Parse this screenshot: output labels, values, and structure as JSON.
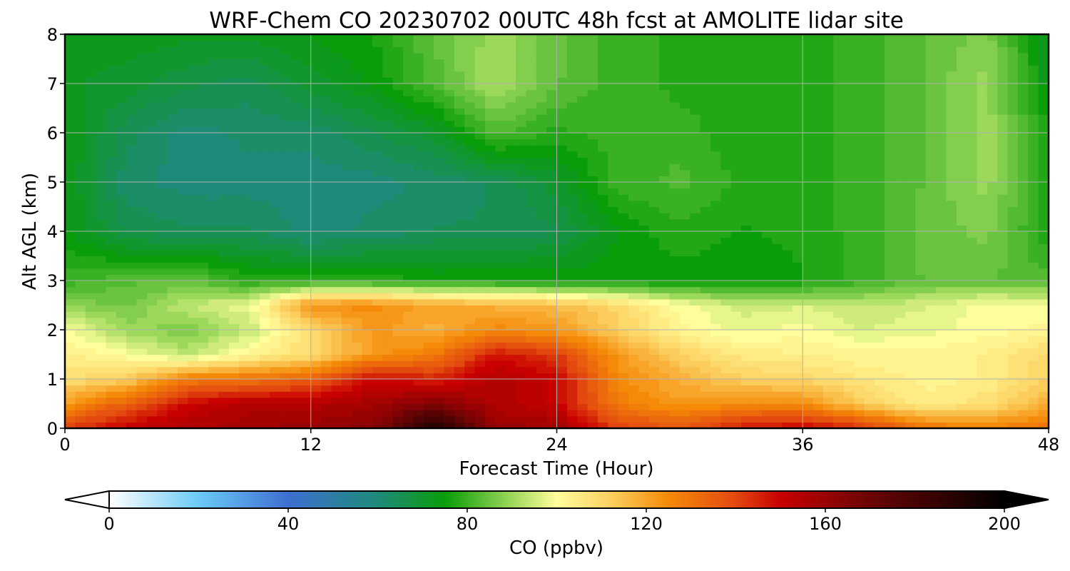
{
  "chart_data": {
    "type": "heatmap",
    "title": "WRF-Chem CO  20230702 00UTC 48h fcst at AMOLITE lidar site",
    "xlabel": "Forecast Time (Hour)",
    "ylabel": "Alt AGL (km)",
    "xlim": [
      0,
      48
    ],
    "ylim": [
      0,
      8
    ],
    "x_ticks": [
      0,
      12,
      24,
      36,
      48
    ],
    "y_ticks": [
      0,
      1,
      2,
      3,
      4,
      5,
      6,
      7,
      8
    ],
    "grid": true,
    "x": [
      0,
      3,
      6,
      9,
      12,
      15,
      18,
      21,
      24,
      27,
      30,
      33,
      36,
      39,
      42,
      45,
      48
    ],
    "y": [
      0.05,
      0.5,
      1.0,
      1.5,
      2.0,
      2.5,
      3.0,
      4.0,
      5.0,
      6.0,
      7.0,
      8.0
    ],
    "values": [
      [
        140,
        150,
        155,
        158,
        160,
        162,
        190,
        160,
        158,
        140,
        135,
        145,
        148,
        140,
        128,
        125,
        130
      ],
      [
        122,
        135,
        150,
        155,
        155,
        158,
        165,
        155,
        150,
        128,
        122,
        125,
        125,
        112,
        104,
        108,
        118
      ],
      [
        108,
        112,
        128,
        130,
        135,
        150,
        145,
        155,
        150,
        125,
        118,
        112,
        110,
        106,
        103,
        104,
        112
      ],
      [
        104,
        100,
        93,
        102,
        108,
        122,
        128,
        148,
        142,
        122,
        112,
        105,
        104,
        102,
        102,
        104,
        110
      ],
      [
        100,
        90,
        87,
        94,
        110,
        122,
        118,
        125,
        122,
        112,
        102,
        98,
        100,
        96,
        98,
        100,
        102
      ],
      [
        88,
        86,
        94,
        98,
        124,
        125,
        120,
        118,
        116,
        110,
        100,
        95,
        96,
        94,
        96,
        100,
        100
      ],
      [
        80,
        83,
        84,
        78,
        78,
        78,
        76,
        76,
        76,
        75,
        75,
        74,
        76,
        80,
        84,
        84,
        82
      ],
      [
        74,
        66,
        64,
        64,
        60,
        62,
        64,
        64,
        66,
        74,
        78,
        76,
        77,
        80,
        85,
        87,
        77
      ],
      [
        74,
        62,
        60,
        60,
        60,
        60,
        62,
        64,
        70,
        80,
        82,
        78,
        77,
        80,
        84,
        90,
        77
      ],
      [
        74,
        65,
        60,
        62,
        62,
        66,
        70,
        82,
        78,
        80,
        80,
        77,
        77,
        80,
        84,
        90,
        77
      ],
      [
        72,
        70,
        67,
        65,
        70,
        74,
        82,
        92,
        84,
        80,
        78,
        77,
        77,
        80,
        84,
        90,
        72
      ],
      [
        72,
        73,
        72,
        72,
        74,
        76,
        84,
        90,
        85,
        80,
        78,
        77,
        77,
        80,
        84,
        87,
        72
      ]
    ],
    "colorbar": {
      "label": "CO  (ppbv)",
      "range": [
        0,
        200
      ],
      "ticks": [
        0,
        40,
        80,
        120,
        160,
        200
      ],
      "extend": "both",
      "orientation": "horizontal",
      "colors": {
        "c0": "#ffffff",
        "c20": "#6ccaf6",
        "c40": "#3d6fd1",
        "c60": "#1e8a7a",
        "c75": "#099d09",
        "c90": "#9cd85a",
        "c100": "#fffe9c",
        "c112": "#fcd060",
        "c125": "#f58a08",
        "c140": "#e3480f",
        "c150": "#c80000",
        "c170": "#6a0404",
        "c200": "#000000"
      }
    }
  }
}
